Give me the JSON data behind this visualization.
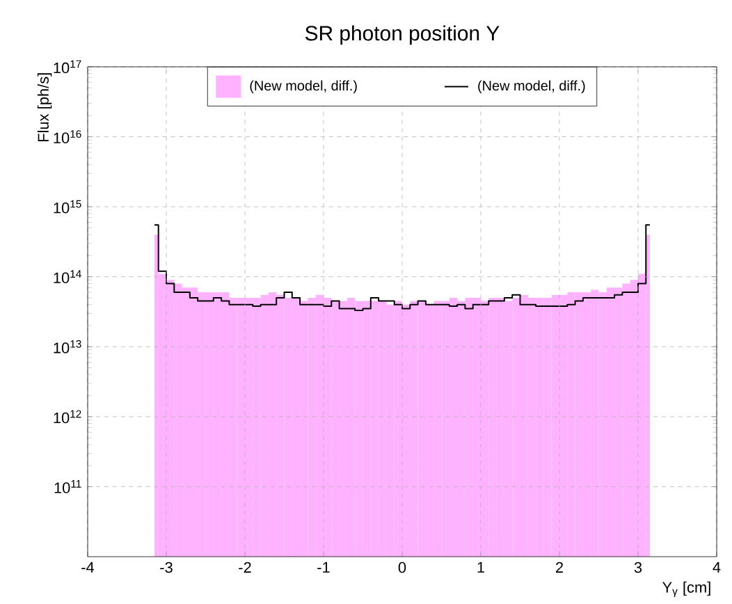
{
  "chart_data": {
    "type": "histogram",
    "title": "SR photon position Y",
    "xlabel": "Y$_{γ}$ [cm]",
    "ylabel": "Flux [ph/s]",
    "bins": [
      -3.15,
      -3.1,
      -3.0,
      -2.9,
      -2.8,
      -2.7,
      -2.6,
      -2.5,
      -2.4,
      -2.3,
      -2.2,
      -2.1,
      -2.0,
      -1.9,
      -1.8,
      -1.7,
      -1.6,
      -1.5,
      -1.4,
      -1.3,
      -1.2,
      -1.1,
      -1.0,
      -0.9,
      -0.8,
      -0.7,
      -0.6,
      -0.5,
      -0.4,
      -0.3,
      -0.2,
      -0.1,
      0.0,
      0.1,
      0.2,
      0.3,
      0.4,
      0.5,
      0.6,
      0.7,
      0.8,
      0.9,
      1.0,
      1.1,
      1.2,
      1.3,
      1.4,
      1.5,
      1.6,
      1.7,
      1.8,
      1.9,
      2.0,
      2.1,
      2.2,
      2.3,
      2.4,
      2.5,
      2.6,
      2.7,
      2.8,
      2.9,
      3.0,
      3.1,
      3.15
    ],
    "series": [
      {
        "name": "(New model, diff.)",
        "type": "histogram",
        "color": "#ffb2ff",
        "values": [
          400000000000000.0,
          110000000000000.0,
          90000000000000.0,
          80000000000000.0,
          70000000000000.0,
          70000000000000.0,
          60000000000000.0,
          60000000000000.0,
          60000000000000.0,
          60000000000000.0,
          50000000000000.0,
          50000000000000.0,
          50000000000000.0,
          50000000000000.0,
          55000000000000.0,
          60000000000000.0,
          55000000000000.0,
          50000000000000.0,
          50000000000000.0,
          45000000000000.0,
          50000000000000.0,
          55000000000000.0,
          50000000000000.0,
          45000000000000.0,
          45000000000000.0,
          50000000000000.0,
          45000000000000.0,
          45000000000000.0,
          45000000000000.0,
          45000000000000.0,
          40000000000000.0,
          45000000000000.0,
          40000000000000.0,
          45000000000000.0,
          45000000000000.0,
          40000000000000.0,
          45000000000000.0,
          45000000000000.0,
          50000000000000.0,
          45000000000000.0,
          50000000000000.0,
          50000000000000.0,
          45000000000000.0,
          50000000000000.0,
          50000000000000.0,
          45000000000000.0,
          50000000000000.0,
          55000000000000.0,
          50000000000000.0,
          50000000000000.0,
          50000000000000.0,
          55000000000000.0,
          55000000000000.0,
          60000000000000.0,
          60000000000000.0,
          60000000000000.0,
          65000000000000.0,
          60000000000000.0,
          70000000000000.0,
          70000000000000.0,
          80000000000000.0,
          90000000000000.0,
          110000000000000.0,
          400000000000000.0
        ]
      },
      {
        "name": "(New model, diff.)",
        "type": "step",
        "color": "#000000",
        "x": [
          -3.15,
          -3.1,
          -3.0,
          -2.9,
          -2.8,
          -2.7,
          -2.6,
          -2.5,
          -2.4,
          -2.3,
          -2.2,
          -2.1,
          -2.0,
          -1.9,
          -1.8,
          -1.7,
          -1.6,
          -1.5,
          -1.4,
          -1.3,
          -1.2,
          -1.1,
          -1.0,
          -0.9,
          -0.8,
          -0.7,
          -0.6,
          -0.5,
          -0.4,
          -0.3,
          -0.2,
          -0.1,
          0.0,
          0.1,
          0.2,
          0.3,
          0.4,
          0.5,
          0.6,
          0.7,
          0.8,
          0.9,
          1.0,
          1.1,
          1.2,
          1.3,
          1.4,
          1.5,
          1.6,
          1.7,
          1.8,
          1.9,
          2.0,
          2.1,
          2.2,
          2.3,
          2.4,
          2.5,
          2.6,
          2.7,
          2.8,
          2.9,
          3.0,
          3.1,
          3.15
        ],
        "values": [
          550000000000000.0,
          120000000000000.0,
          80000000000000.0,
          60000000000000.0,
          60000000000000.0,
          50000000000000.0,
          45000000000000.0,
          45000000000000.0,
          50000000000000.0,
          45000000000000.0,
          40000000000000.0,
          40000000000000.0,
          40000000000000.0,
          38000000000000.0,
          40000000000000.0,
          40000000000000.0,
          50000000000000.0,
          60000000000000.0,
          50000000000000.0,
          40000000000000.0,
          40000000000000.0,
          40000000000000.0,
          38000000000000.0,
          45000000000000.0,
          35000000000000.0,
          35000000000000.0,
          33000000000000.0,
          35000000000000.0,
          50000000000000.0,
          45000000000000.0,
          45000000000000.0,
          40000000000000.0,
          35000000000000.0,
          40000000000000.0,
          45000000000000.0,
          40000000000000.0,
          40000000000000.0,
          40000000000000.0,
          38000000000000.0,
          40000000000000.0,
          35000000000000.0,
          40000000000000.0,
          40000000000000.0,
          45000000000000.0,
          45000000000000.0,
          50000000000000.0,
          55000000000000.0,
          40000000000000.0,
          40000000000000.0,
          38000000000000.0,
          38000000000000.0,
          38000000000000.0,
          38000000000000.0,
          40000000000000.0,
          45000000000000.0,
          50000000000000.0,
          50000000000000.0,
          50000000000000.0,
          50000000000000.0,
          55000000000000.0,
          60000000000000.0,
          60000000000000.0,
          80000000000000.0,
          550000000000000.0,
          550000000000000.0
        ]
      }
    ],
    "log": "y",
    "xlim": [
      -4,
      4
    ],
    "ylim": [
      10000000000.0,
      1e+17
    ],
    "xticks": [
      -4,
      -3,
      -2,
      -1,
      0,
      1,
      2,
      3,
      4
    ],
    "yticks": [
      {
        "value": 100000000000.0,
        "label": "10$^{11}$"
      },
      {
        "value": 1000000000000.0,
        "label": "10$^{12}$"
      },
      {
        "value": 10000000000000.0,
        "label": "10$^{13}$"
      },
      {
        "value": 100000000000000.0,
        "label": "10$^{14}$"
      },
      {
        "value": 1000000000000000.0,
        "label": "10$^{15}$"
      },
      {
        "value": 1e+16,
        "label": "10$^{16}$"
      },
      {
        "value": 1e+17,
        "label": "10$^{17}$"
      }
    ],
    "grid": true,
    "legend": "top"
  }
}
